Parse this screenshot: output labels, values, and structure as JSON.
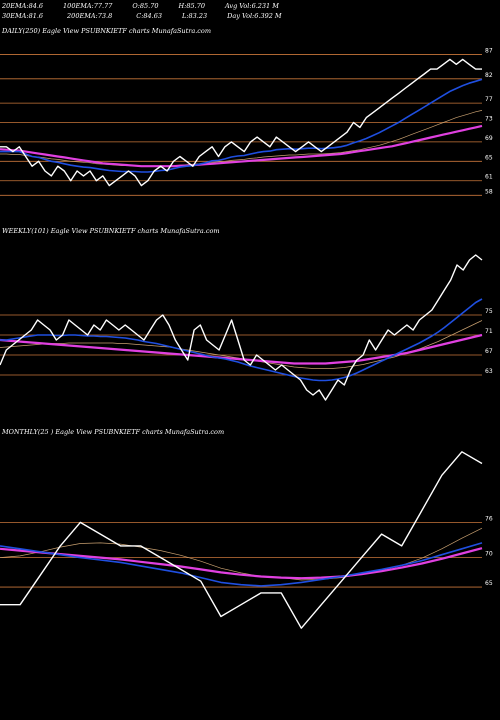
{
  "header": {
    "row1": [
      {
        "label": "20EMA:",
        "value": "84.6"
      },
      {
        "label": "100EMA:",
        "value": "77.77"
      },
      {
        "label": "O:",
        "value": "85.70"
      },
      {
        "label": "H:",
        "value": "85.70"
      },
      {
        "label": "Avg Vol:",
        "value": "6.231 M"
      }
    ],
    "row2": [
      {
        "label": "30EMA:",
        "value": "81.6"
      },
      {
        "label": "200EMA:",
        "value": "73.8"
      },
      {
        "label": "C:",
        "value": "84.63"
      },
      {
        "label": "L:",
        "value": "83.23"
      },
      {
        "label": "Day Vol:",
        "value": "6.392  M"
      }
    ]
  },
  "colors": {
    "background": "#000000",
    "price": "#ffffff",
    "ema_fast": "#1f4fe0",
    "ema_slow": "#e040e0",
    "ema_thin": "#c8a070",
    "hline": "#c8763a"
  },
  "chart_data": [
    {
      "type": "line",
      "panel": "daily",
      "title": "DAILY(250) Eagle  View  PSUBNKIETF charts MunafaSutra.com",
      "yticks": [
        87,
        82,
        77,
        73,
        69,
        65,
        61,
        58
      ],
      "ylim": [
        56,
        90
      ],
      "grid": false,
      "series": [
        {
          "role": "price",
          "values": [
            68,
            68,
            67,
            68,
            66,
            64,
            65,
            63,
            62,
            64,
            63,
            61,
            63,
            62,
            63,
            61,
            62,
            60,
            61,
            62,
            63,
            62,
            60,
            61,
            63,
            64,
            63,
            65,
            66,
            65,
            64,
            66,
            67,
            68,
            66,
            68,
            69,
            68,
            67,
            69,
            70,
            69,
            68,
            70,
            69,
            68,
            67,
            68,
            69,
            68,
            67,
            68,
            69,
            70,
            71,
            73,
            72,
            74,
            75,
            76,
            77,
            78,
            79,
            80,
            81,
            82,
            83,
            84,
            84,
            85,
            86,
            85,
            86,
            85,
            84,
            84
          ]
        },
        {
          "role": "ema_fast",
          "values": [
            67,
            67,
            67,
            67,
            66.5,
            66,
            65.8,
            65.4,
            65,
            64.8,
            64.5,
            64.2,
            64,
            63.8,
            63.7,
            63.5,
            63.3,
            63.1,
            63,
            62.9,
            62.9,
            62.9,
            62.8,
            62.8,
            62.9,
            63.1,
            63.2,
            63.5,
            63.8,
            64,
            64.1,
            64.4,
            64.7,
            65.1,
            65.2,
            65.5,
            65.9,
            66.1,
            66.2,
            66.5,
            66.8,
            67,
            67.1,
            67.4,
            67.5,
            67.6,
            67.5,
            67.6,
            67.7,
            67.7,
            67.6,
            67.7,
            67.8,
            68,
            68.3,
            68.8,
            69.2,
            69.7,
            70.3,
            70.9,
            71.6,
            72.3,
            73,
            73.8,
            74.6,
            75.4,
            76.2,
            77,
            77.8,
            78.6,
            79.4,
            80,
            80.6,
            81.1,
            81.5,
            81.9
          ]
        },
        {
          "role": "ema_thin",
          "values": [
            66.5,
            66.5,
            66.4,
            66.4,
            66.2,
            66,
            65.9,
            65.7,
            65.5,
            65.4,
            65.2,
            65,
            64.9,
            64.8,
            64.7,
            64.5,
            64.4,
            64.3,
            64.2,
            64.1,
            64.1,
            64,
            64,
            63.9,
            63.9,
            64,
            64,
            64.1,
            64.2,
            64.3,
            64.4,
            64.5,
            64.6,
            64.8,
            64.9,
            65,
            65.2,
            65.3,
            65.4,
            65.6,
            65.7,
            65.9,
            66,
            66.1,
            66.2,
            66.3,
            66.3,
            66.4,
            66.5,
            66.5,
            66.5,
            66.6,
            66.7,
            66.8,
            67,
            67.2,
            67.4,
            67.7,
            68,
            68.3,
            68.7,
            69.1,
            69.5,
            70,
            70.5,
            71,
            71.5,
            72,
            72.5,
            73,
            73.5,
            74,
            74.4,
            74.8,
            75.2,
            75.5
          ]
        },
        {
          "role": "ema_slow",
          "values": [
            67.5,
            67.4,
            67.3,
            67.2,
            67,
            66.8,
            66.6,
            66.4,
            66.2,
            66,
            65.8,
            65.6,
            65.4,
            65.2,
            65,
            64.8,
            64.6,
            64.5,
            64.4,
            64.3,
            64.2,
            64.1,
            64,
            64,
            64,
            64,
            64,
            64,
            64.1,
            64.1,
            64.2,
            64.3,
            64.4,
            64.5,
            64.6,
            64.7,
            64.8,
            64.9,
            65,
            65.1,
            65.2,
            65.3,
            65.4,
            65.5,
            65.6,
            65.7,
            65.8,
            65.9,
            66,
            66.1,
            66.2,
            66.3,
            66.4,
            66.5,
            66.7,
            66.9,
            67.1,
            67.3,
            67.5,
            67.7,
            67.9,
            68.1,
            68.4,
            68.7,
            69,
            69.3,
            69.6,
            69.9,
            70.2,
            70.5,
            70.8,
            71.1,
            71.4,
            71.7,
            72,
            72.3
          ]
        }
      ]
    },
    {
      "type": "line",
      "panel": "weekly",
      "title": "WEEKLY(101) Eagle  View  PSUBNKIETF charts MunafaSutra.com",
      "yticks": [
        75,
        71,
        67,
        63
      ],
      "ylim": [
        56,
        90
      ],
      "grid": false,
      "series": [
        {
          "role": "price",
          "values": [
            65,
            68,
            69,
            70,
            71,
            72,
            74,
            73,
            72,
            70,
            71,
            74,
            73,
            72,
            71,
            73,
            72,
            74,
            73,
            72,
            73,
            72,
            71,
            70,
            72,
            74,
            75,
            73,
            70,
            68,
            66,
            72,
            73,
            70,
            69,
            68,
            71,
            74,
            70,
            66,
            65,
            67,
            66,
            65,
            64,
            65,
            64,
            63,
            62,
            60,
            59,
            60,
            58,
            60,
            62,
            61,
            64,
            66,
            67,
            70,
            68,
            70,
            72,
            71,
            72,
            73,
            72,
            74,
            75,
            76,
            78,
            80,
            82,
            85,
            84,
            86,
            87,
            86
          ]
        },
        {
          "role": "ema_fast",
          "values": [
            70,
            70,
            70.2,
            70.4,
            70.6,
            70.8,
            71,
            71,
            71,
            70.9,
            70.9,
            71,
            71,
            70.9,
            70.8,
            70.8,
            70.7,
            70.7,
            70.6,
            70.5,
            70.4,
            70.2,
            70,
            69.7,
            69.5,
            69.3,
            69,
            68.7,
            68.4,
            68.1,
            67.8,
            67.5,
            67.2,
            66.9,
            66.6,
            66.4,
            66.2,
            65.9,
            65.6,
            65.2,
            64.8,
            64.5,
            64.2,
            63.9,
            63.6,
            63.3,
            63,
            62.7,
            62.4,
            62.2,
            62,
            61.9,
            61.9,
            62,
            62.2,
            62.5,
            62.9,
            63.4,
            64,
            64.6,
            65.2,
            65.8,
            66.4,
            67,
            67.6,
            68.2,
            68.8,
            69.4,
            70.1,
            70.8,
            71.6,
            72.5,
            73.5,
            74.5,
            75.5,
            76.5,
            77.5,
            78.2
          ]
        },
        {
          "role": "ema_thin",
          "values": [
            68.5,
            68.6,
            68.7,
            68.8,
            68.9,
            69,
            69.1,
            69.2,
            69.3,
            69.3,
            69.3,
            69.4,
            69.4,
            69.4,
            69.4,
            69.4,
            69.4,
            69.4,
            69.4,
            69.3,
            69.3,
            69.2,
            69.1,
            69,
            68.9,
            68.8,
            68.7,
            68.6,
            68.4,
            68.2,
            68,
            67.8,
            67.6,
            67.4,
            67.2,
            67,
            66.8,
            66.6,
            66.4,
            66.2,
            66,
            65.8,
            65.6,
            65.4,
            65.2,
            65,
            64.8,
            64.6,
            64.5,
            64.4,
            64.3,
            64.3,
            64.3,
            64.3,
            64.4,
            64.5,
            64.7,
            64.9,
            65.1,
            65.4,
            65.7,
            66,
            66.3,
            66.6,
            67,
            67.4,
            67.8,
            68.2,
            68.7,
            69.2,
            69.7,
            70.3,
            70.9,
            71.5,
            72.1,
            72.7,
            73.3,
            73.9
          ]
        },
        {
          "role": "ema_slow",
          "values": [
            70,
            69.9,
            69.8,
            69.7,
            69.6,
            69.5,
            69.4,
            69.3,
            69.2,
            69.1,
            69,
            68.9,
            68.8,
            68.7,
            68.6,
            68.5,
            68.4,
            68.3,
            68.2,
            68.1,
            68,
            67.9,
            67.8,
            67.7,
            67.6,
            67.5,
            67.4,
            67.3,
            67.2,
            67.1,
            67,
            66.9,
            66.8,
            66.7,
            66.6,
            66.5,
            66.4,
            66.3,
            66.2,
            66.1,
            66,
            65.9,
            65.8,
            65.7,
            65.6,
            65.5,
            65.4,
            65.3,
            65.3,
            65.3,
            65.3,
            65.3,
            65.3,
            65.4,
            65.5,
            65.6,
            65.7,
            65.8,
            66,
            66.2,
            66.4,
            66.6,
            66.8,
            67,
            67.2,
            67.4,
            67.7,
            68,
            68.3,
            68.6,
            68.9,
            69.2,
            69.5,
            69.8,
            70.1,
            70.4,
            70.7,
            71
          ]
        }
      ]
    },
    {
      "type": "line",
      "panel": "monthly",
      "title": "MONTHLY(25                    ) Eagle  View  PSUBNKIETF charts MunafaSutra.com",
      "yticks": [
        76,
        70,
        65
      ],
      "ylim": [
        56,
        90
      ],
      "grid": false,
      "series": [
        {
          "role": "price",
          "values": [
            62,
            62,
            67,
            72,
            76,
            74,
            72,
            72,
            70,
            68,
            66,
            60,
            62,
            64,
            64,
            58,
            62,
            66,
            70,
            74,
            72,
            78,
            84,
            88,
            86
          ]
        },
        {
          "role": "ema_fast",
          "values": [
            72,
            71.5,
            71,
            70.5,
            70,
            69.6,
            69.2,
            68.6,
            68,
            67.4,
            66.6,
            65.8,
            65.4,
            65.2,
            65.4,
            65.8,
            66.3,
            66.8,
            67.4,
            68,
            68.7,
            69.5,
            70.5,
            71.5,
            72.5
          ]
        },
        {
          "role": "ema_thin",
          "values": [
            70,
            70.3,
            71,
            71.8,
            72.4,
            72.5,
            72.3,
            71.8,
            71.2,
            70.4,
            69.4,
            68.2,
            67.4,
            66.8,
            66.6,
            66.2,
            66.3,
            66.6,
            67.2,
            67.9,
            68.7,
            69.9,
            71.5,
            73.3,
            75
          ]
        },
        {
          "role": "ema_slow",
          "values": [
            71.5,
            71.2,
            70.9,
            70.6,
            70.3,
            70,
            69.7,
            69.3,
            68.9,
            68.5,
            68,
            67.5,
            67.1,
            66.8,
            66.6,
            66.5,
            66.6,
            66.8,
            67.2,
            67.7,
            68.3,
            69,
            69.8,
            70.7,
            71.6
          ]
        }
      ]
    }
  ]
}
